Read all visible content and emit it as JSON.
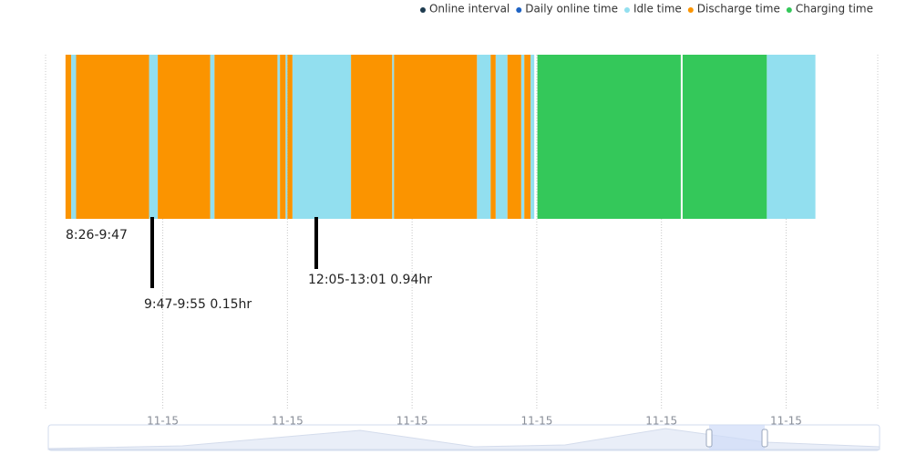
{
  "chart_data": {
    "type": "timeline",
    "xlim": [
      8.12,
      21.47
    ],
    "xticks": [
      {
        "value": 10,
        "label": "11-15"
      },
      {
        "value": 12,
        "label": "11-15"
      },
      {
        "value": 14,
        "label": "11-15"
      },
      {
        "value": 16,
        "label": "11-15"
      },
      {
        "value": 18,
        "label": "11-15"
      },
      {
        "value": 20,
        "label": "11-15"
      }
    ],
    "grid": true,
    "legend": "top-right",
    "series": [
      {
        "name": "Online interval",
        "color": "#1d3b4f",
        "segments": []
      },
      {
        "name": "Daily online time",
        "color": "#1e63c4",
        "segments": []
      },
      {
        "name": "Idle time",
        "color": "#92dfef",
        "segments": [
          [
            8.53,
            8.61
          ],
          [
            9.78,
            9.92
          ],
          [
            10.76,
            10.83
          ],
          [
            11.84,
            11.88
          ],
          [
            11.97,
            12.0
          ],
          [
            12.08,
            13.02
          ],
          [
            13.68,
            13.71
          ],
          [
            15.04,
            15.26
          ],
          [
            15.34,
            15.53
          ],
          [
            15.75,
            15.8
          ],
          [
            15.9,
            15.96
          ],
          [
            19.69,
            20.47
          ]
        ]
      },
      {
        "name": "Discharge time",
        "color": "#fb9400",
        "segments": [
          [
            8.44,
            8.53
          ],
          [
            8.61,
            9.78
          ],
          [
            9.92,
            10.76
          ],
          [
            10.83,
            11.84
          ],
          [
            11.88,
            11.97
          ],
          [
            12.0,
            12.08
          ],
          [
            13.02,
            13.68
          ],
          [
            13.71,
            15.04
          ],
          [
            15.26,
            15.34
          ],
          [
            15.53,
            15.75
          ],
          [
            15.8,
            15.9
          ]
        ]
      },
      {
        "name": "Charging time",
        "color": "#34c85a",
        "segments": [
          [
            16.01,
            18.31
          ],
          [
            18.34,
            19.69
          ]
        ]
      }
    ],
    "annotations": [
      {
        "text": "8:26-9:47"
      },
      {
        "text": "9:47-9:55 0.15hr"
      },
      {
        "text": "12:05-13:01 0.94hr"
      }
    ]
  }
}
